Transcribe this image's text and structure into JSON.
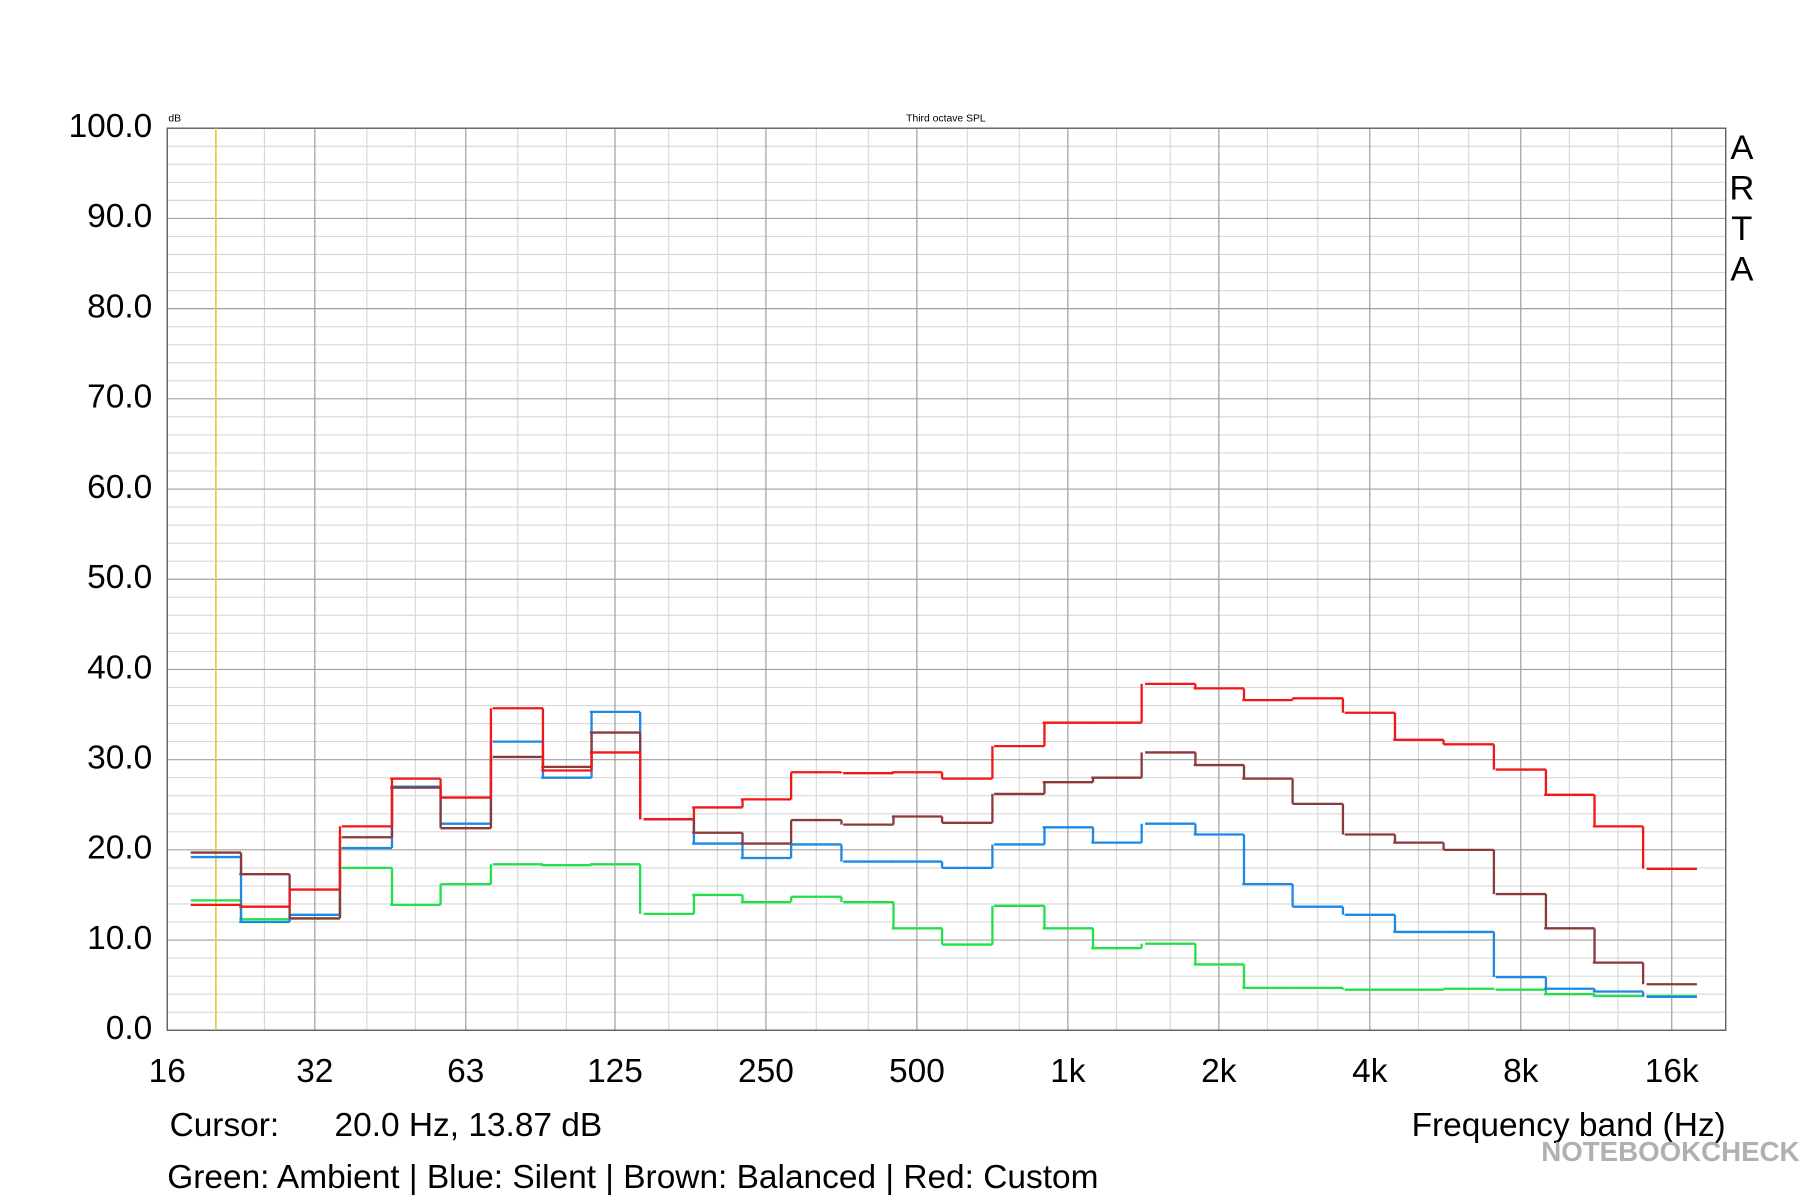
{
  "chart_data": {
    "type": "step",
    "title": "Third octave SPL",
    "y_unit": "dB",
    "brand": "ARTA",
    "xlabel": "Frequency band (Hz)",
    "cursor_label": "Cursor:",
    "cursor_text": "20.0 Hz, 13.87 dB",
    "cursor_x": 20,
    "cursor_color": "#e0d040",
    "caption": "Green: Ambient | Blue: Silent | Brown: Balanced | Red: Custom",
    "watermark": "NOTEBOOKCHECK",
    "log_x": true,
    "grid": true,
    "xlim": [
      16,
      20500
    ],
    "ylim": [
      0,
      100
    ],
    "xticks": [
      16,
      {
        "value": 31.5,
        "label": "32"
      },
      63,
      125,
      250,
      500,
      {
        "value": 1000,
        "label": "1k"
      },
      {
        "value": 2000,
        "label": "2k"
      },
      {
        "value": 4000,
        "label": "4k"
      },
      {
        "value": 8000,
        "label": "8k"
      },
      {
        "value": 16000,
        "label": "16k"
      }
    ],
    "yticks": [
      {
        "value": 0,
        "label": "0.0"
      },
      {
        "value": 10,
        "label": "10.0"
      },
      {
        "value": 20,
        "label": "20.0"
      },
      {
        "value": 30,
        "label": "30.0"
      },
      {
        "value": 40,
        "label": "40.0"
      },
      {
        "value": 50,
        "label": "50.0"
      },
      {
        "value": 60,
        "label": "60.0"
      },
      {
        "value": 70,
        "label": "70.0"
      },
      {
        "value": 80,
        "label": "80.0"
      },
      {
        "value": 90,
        "label": "90.0"
      },
      {
        "value": 100,
        "label": "100.0"
      }
    ],
    "minor_yticks": [
      2,
      4,
      6,
      8,
      12,
      14,
      16,
      18,
      22,
      24,
      26,
      28,
      32,
      34,
      36,
      38,
      42,
      44,
      46,
      48,
      52,
      54,
      56,
      58,
      62,
      64,
      66,
      68,
      72,
      74,
      76,
      78,
      82,
      84,
      86,
      88,
      92,
      94,
      96,
      98
    ],
    "x": [
      20,
      25,
      31.5,
      40,
      50,
      63,
      80,
      100,
      125,
      160,
      200,
      250,
      315,
      400,
      500,
      630,
      800,
      1000,
      1250,
      1600,
      2000,
      2500,
      3150,
      4000,
      5000,
      6300,
      8000,
      10000,
      12500,
      16000
    ],
    "series": [
      {
        "name": "Ambient",
        "color": "#22e04a",
        "values": [
          14.4,
          12.3,
          12.4,
          18.0,
          13.9,
          16.2,
          18.4,
          18.3,
          18.4,
          12.9,
          15.0,
          14.2,
          14.8,
          14.2,
          11.3,
          9.5,
          13.8,
          11.3,
          9.1,
          9.6,
          7.3,
          4.7,
          4.7,
          4.5,
          4.5,
          4.6,
          4.5,
          4.0,
          3.8,
          3.8
        ]
      },
      {
        "name": "Silent",
        "color": "#1e88e5",
        "values": [
          19.2,
          12.0,
          12.8,
          20.2,
          27.0,
          22.9,
          32.0,
          28.0,
          35.3,
          23.4,
          20.7,
          19.1,
          20.6,
          18.7,
          18.7,
          18.0,
          20.6,
          22.5,
          20.8,
          22.9,
          21.7,
          16.2,
          13.7,
          12.8,
          10.9,
          10.9,
          5.9,
          4.6,
          4.3,
          3.7
        ]
      },
      {
        "name": "Balanced",
        "color": "#8b3a3a",
        "values": [
          19.7,
          17.3,
          12.4,
          21.4,
          26.9,
          22.4,
          30.3,
          29.2,
          33.0,
          23.4,
          21.9,
          20.7,
          23.3,
          22.8,
          23.7,
          23.0,
          26.2,
          27.5,
          28.0,
          30.8,
          29.4,
          27.9,
          25.1,
          21.7,
          20.8,
          20.0,
          15.1,
          11.3,
          7.5,
          5.1
        ]
      },
      {
        "name": "Custom",
        "color": "#f01818",
        "values": [
          13.9,
          13.7,
          15.6,
          22.6,
          27.9,
          25.8,
          35.7,
          28.8,
          30.8,
          23.4,
          24.7,
          25.6,
          28.6,
          28.5,
          28.6,
          27.9,
          31.5,
          34.1,
          34.1,
          38.4,
          37.9,
          36.6,
          36.8,
          35.2,
          32.2,
          31.7,
          28.9,
          26.1,
          22.6,
          17.9
        ]
      }
    ]
  }
}
